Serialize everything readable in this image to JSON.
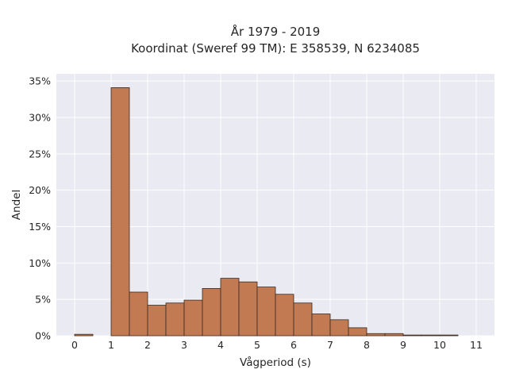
{
  "chart_data": {
    "type": "bar",
    "title_lines": [
      "År 1979 - 2019",
      "Koordinat (Sweref 99 TM): E 358539, N 6234085"
    ],
    "xlabel": "Vågperiod (s)",
    "ylabel": "Andel",
    "x_ticks": [
      0,
      1,
      2,
      3,
      4,
      5,
      6,
      7,
      8,
      9,
      10,
      11
    ],
    "x_tick_labels": [
      "0",
      "1",
      "2",
      "3",
      "4",
      "5",
      "6",
      "7",
      "8",
      "9",
      "10",
      "11"
    ],
    "y_ticks": [
      0,
      5,
      10,
      15,
      20,
      25,
      30,
      35
    ],
    "y_tick_labels": [
      "0%",
      "5%",
      "10%",
      "15%",
      "20%",
      "25%",
      "30%",
      "35%"
    ],
    "xlim": [
      -0.5,
      11.5
    ],
    "ylim": [
      0,
      36
    ],
    "bin_width": 0.5,
    "bins": [
      {
        "x0": 0.0,
        "value": 0.2
      },
      {
        "x0": 0.5,
        "value": 0.0
      },
      {
        "x0": 1.0,
        "value": 34.1
      },
      {
        "x0": 1.5,
        "value": 6.0
      },
      {
        "x0": 2.0,
        "value": 4.2
      },
      {
        "x0": 2.5,
        "value": 4.5
      },
      {
        "x0": 3.0,
        "value": 4.9
      },
      {
        "x0": 3.5,
        "value": 6.5
      },
      {
        "x0": 4.0,
        "value": 7.9
      },
      {
        "x0": 4.5,
        "value": 7.4
      },
      {
        "x0": 5.0,
        "value": 6.7
      },
      {
        "x0": 5.5,
        "value": 5.7
      },
      {
        "x0": 6.0,
        "value": 4.5
      },
      {
        "x0": 6.5,
        "value": 3.0
      },
      {
        "x0": 7.0,
        "value": 2.2
      },
      {
        "x0": 7.5,
        "value": 1.1
      },
      {
        "x0": 8.0,
        "value": 0.3
      },
      {
        "x0": 8.5,
        "value": 0.3
      },
      {
        "x0": 9.0,
        "value": 0.1
      },
      {
        "x0": 9.5,
        "value": 0.1
      },
      {
        "x0": 10.0,
        "value": 0.1
      }
    ],
    "grid": true,
    "colors": {
      "bar_fill": "#c17a52",
      "bar_edge": "#3a2a20",
      "plot_background": "#eaeaf2",
      "grid": "#ffffff"
    }
  }
}
